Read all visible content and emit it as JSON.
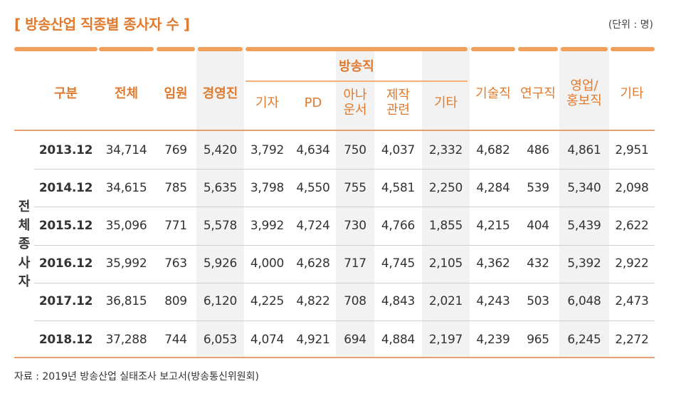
{
  "title": "[ 방송산업 직종별 종사자 수 ]",
  "unit": "(단위 : 명)",
  "headers": {
    "category": "구분",
    "total": "전체",
    "executive": "임원",
    "management": "경영진",
    "broadcast_group": "방송직",
    "reporter": "기자",
    "pd": "PD",
    "announcer": "아나\n운서",
    "production": "제작\n관련",
    "broadcast_other": "기타",
    "technical": "기술직",
    "research": "연구직",
    "sales": "영업/\n홍보직",
    "other": "기타"
  },
  "side_label": [
    "전",
    "체",
    "종",
    "사",
    "자"
  ],
  "rows": [
    {
      "year": "2013.12",
      "values": [
        "34,714",
        "769",
        "5,420",
        "3,792",
        "4,634",
        "750",
        "4,037",
        "2,332",
        "4,682",
        "486",
        "4,861",
        "2,951"
      ]
    },
    {
      "year": "2014.12",
      "values": [
        "34,615",
        "785",
        "5,635",
        "3,798",
        "4,550",
        "755",
        "4,581",
        "2,250",
        "4,284",
        "539",
        "5,340",
        "2,098"
      ]
    },
    {
      "year": "2015.12",
      "values": [
        "35,096",
        "771",
        "5,578",
        "3,992",
        "4,724",
        "730",
        "4,766",
        "1,855",
        "4,215",
        "404",
        "5,439",
        "2,622"
      ]
    },
    {
      "year": "2016.12",
      "values": [
        "35,992",
        "763",
        "5,926",
        "4,000",
        "4,628",
        "717",
        "4,745",
        "2,105",
        "4,362",
        "432",
        "5,392",
        "2,922"
      ]
    },
    {
      "year": "2017.12",
      "values": [
        "36,815",
        "809",
        "6,120",
        "4,225",
        "4,822",
        "708",
        "4,843",
        "2,021",
        "4,243",
        "503",
        "6,048",
        "2,473"
      ]
    },
    {
      "year": "2018.12",
      "values": [
        "37,288",
        "744",
        "6,053",
        "4,074",
        "4,921",
        "694",
        "4,884",
        "2,197",
        "4,239",
        "965",
        "6,245",
        "2,272"
      ]
    }
  ],
  "source": "자료 : 2019년 방송산업 실태조사 보고서(방송통신위원회)",
  "colors": {
    "accent": "#e07a2e",
    "shade": "#f2f2f2"
  }
}
